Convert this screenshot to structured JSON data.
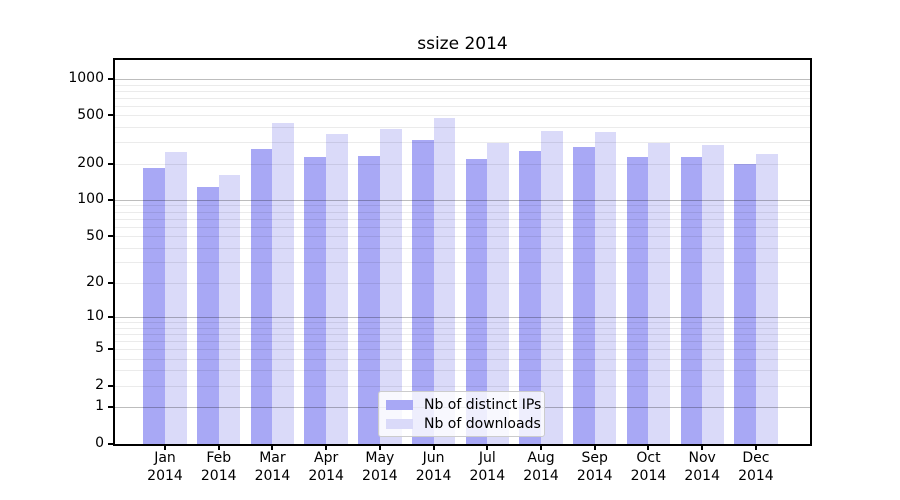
{
  "chart_data": {
    "type": "bar",
    "title": "ssize 2014",
    "categories": [
      "Jan",
      "Feb",
      "Mar",
      "Apr",
      "May",
      "Jun",
      "Jul",
      "Aug",
      "Sep",
      "Oct",
      "Nov",
      "Dec"
    ],
    "x_year": "2014",
    "series": [
      {
        "name": "Nb of distinct IPs",
        "color": "#a8a8f5",
        "values": [
          185,
          128,
          262,
          228,
          232,
          311,
          217,
          253,
          273,
          228,
          225,
          198
        ]
      },
      {
        "name": "Nb of downloads",
        "color": "#dadaf9",
        "values": [
          251,
          161,
          432,
          350,
          388,
          478,
          298,
          371,
          368,
          298,
          286,
          241
        ]
      }
    ],
    "y_ticks": [
      0,
      1,
      2,
      5,
      10,
      20,
      50,
      100,
      200,
      500,
      1000
    ],
    "y_scale": "log1p",
    "ylim": [
      0,
      1435
    ],
    "xlabel": "",
    "ylabel": "",
    "grid": "horizontal major+minor",
    "legend_position": "lower center"
  }
}
